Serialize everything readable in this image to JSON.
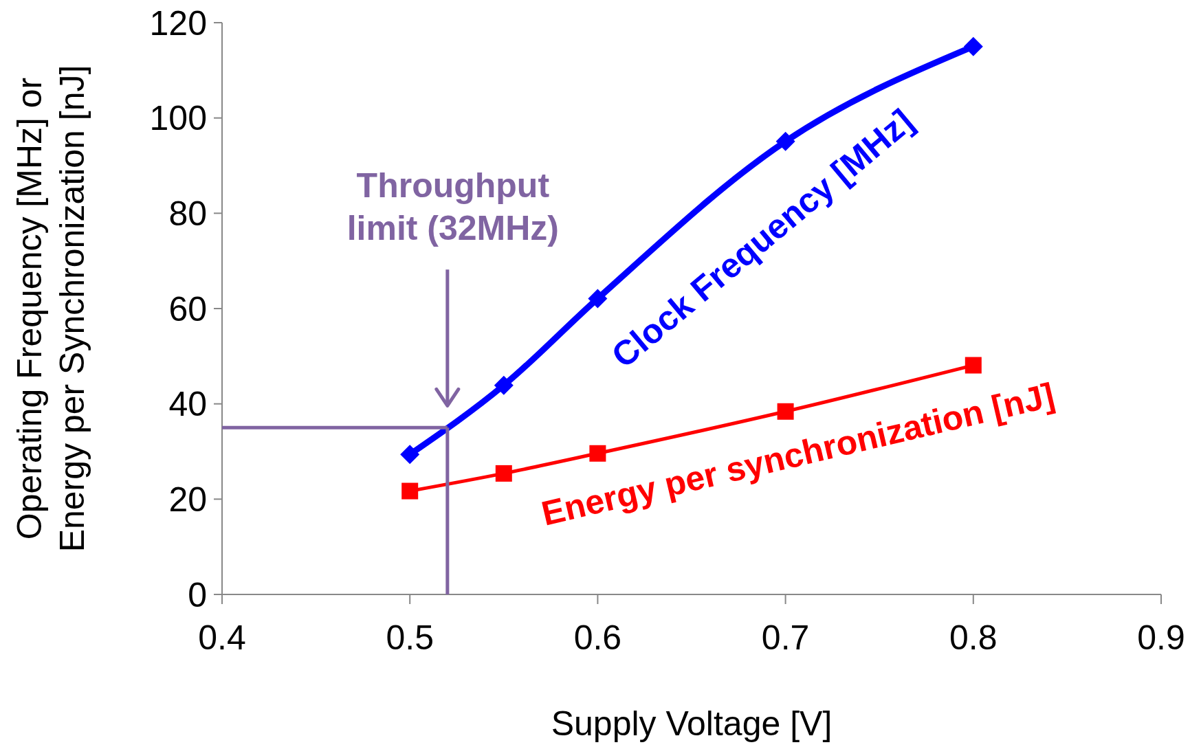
{
  "chart_data": {
    "type": "line",
    "xlabel": "Supply Voltage [V]",
    "ylabel": "Operating Frequency [MHz] or\nEnergy per Synchronization [nJ]",
    "x": [
      0.5,
      0.55,
      0.6,
      0.7,
      0.8
    ],
    "series": [
      {
        "name": "Clock Frequency [MHz]",
        "color": "#0000ff",
        "values": [
          29.4,
          43.9,
          62.1,
          95.1,
          115
        ],
        "marker": "diamond"
      },
      {
        "name": "Energy per synchronization [nJ]",
        "color": "#ff0000",
        "values": [
          21.7,
          25.4,
          29.6,
          38.4,
          48.1
        ],
        "marker": "square"
      }
    ],
    "ref_lines": [
      {
        "axis": "x",
        "value": 0.52,
        "label": "Throughput\nlimit (32MHz)",
        "color": "#8064a2"
      },
      {
        "axis": "y",
        "value": 35,
        "color": "#8064a2"
      }
    ],
    "xlim": [
      0.4,
      0.9
    ],
    "xticks": [
      0.4,
      0.5,
      0.6,
      0.7,
      0.8,
      0.9
    ],
    "ylim": [
      0,
      120
    ],
    "yticks": [
      0,
      20,
      40,
      60,
      80,
      100,
      120
    ],
    "grid": false,
    "legend": false
  }
}
